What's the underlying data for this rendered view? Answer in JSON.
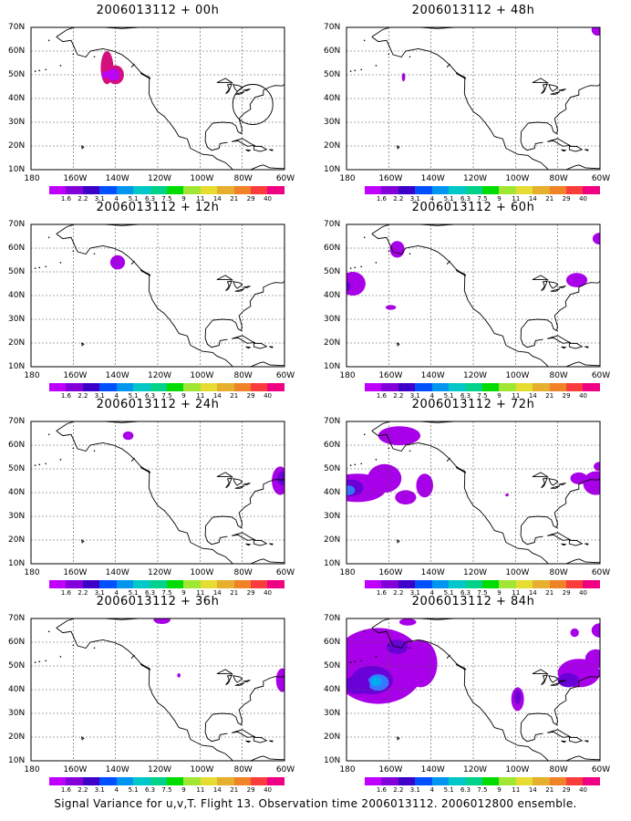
{
  "caption": "Signal Variance for u,v,T. Flight 13. Observation time 2006013112. 2006012800 ensemble.",
  "lat_labels": [
    "70N",
    "60N",
    "50N",
    "40N",
    "30N",
    "20N",
    "10N"
  ],
  "lon_labels": [
    "180",
    "160W",
    "140W",
    "120W",
    "100W",
    "80W",
    "60W"
  ],
  "colorbar": {
    "colors": [
      "#c000ff",
      "#8400d8",
      "#3c00c8",
      "#0050ff",
      "#0096f0",
      "#00c8c8",
      "#00d28c",
      "#00dc00",
      "#a0e632",
      "#e6dc32",
      "#e6af2d",
      "#f08228",
      "#fa3c3c",
      "#f00082"
    ],
    "labels": [
      "1.6",
      "2.2",
      "3.1",
      "4",
      "5.1",
      "6.3",
      "7.5",
      "9",
      "11",
      "14",
      "21",
      "29",
      "40"
    ]
  },
  "panels": [
    {
      "id": "p00",
      "title": "2006013112 + 00h",
      "lead": "00h"
    },
    {
      "id": "p48",
      "title": "2006013112 + 48h",
      "lead": "48h"
    },
    {
      "id": "p12",
      "title": "2006013112 + 12h",
      "lead": "12h"
    },
    {
      "id": "p60",
      "title": "2006013112 + 60h",
      "lead": "60h"
    },
    {
      "id": "p24",
      "title": "2006013112 + 24h",
      "lead": "24h"
    },
    {
      "id": "p72",
      "title": "2006013112 + 72h",
      "lead": "72h"
    },
    {
      "id": "p36",
      "title": "2006013112 + 36h",
      "lead": "36h"
    },
    {
      "id": "p84",
      "title": "2006013112 + 84h",
      "lead": "84h"
    }
  ]
}
